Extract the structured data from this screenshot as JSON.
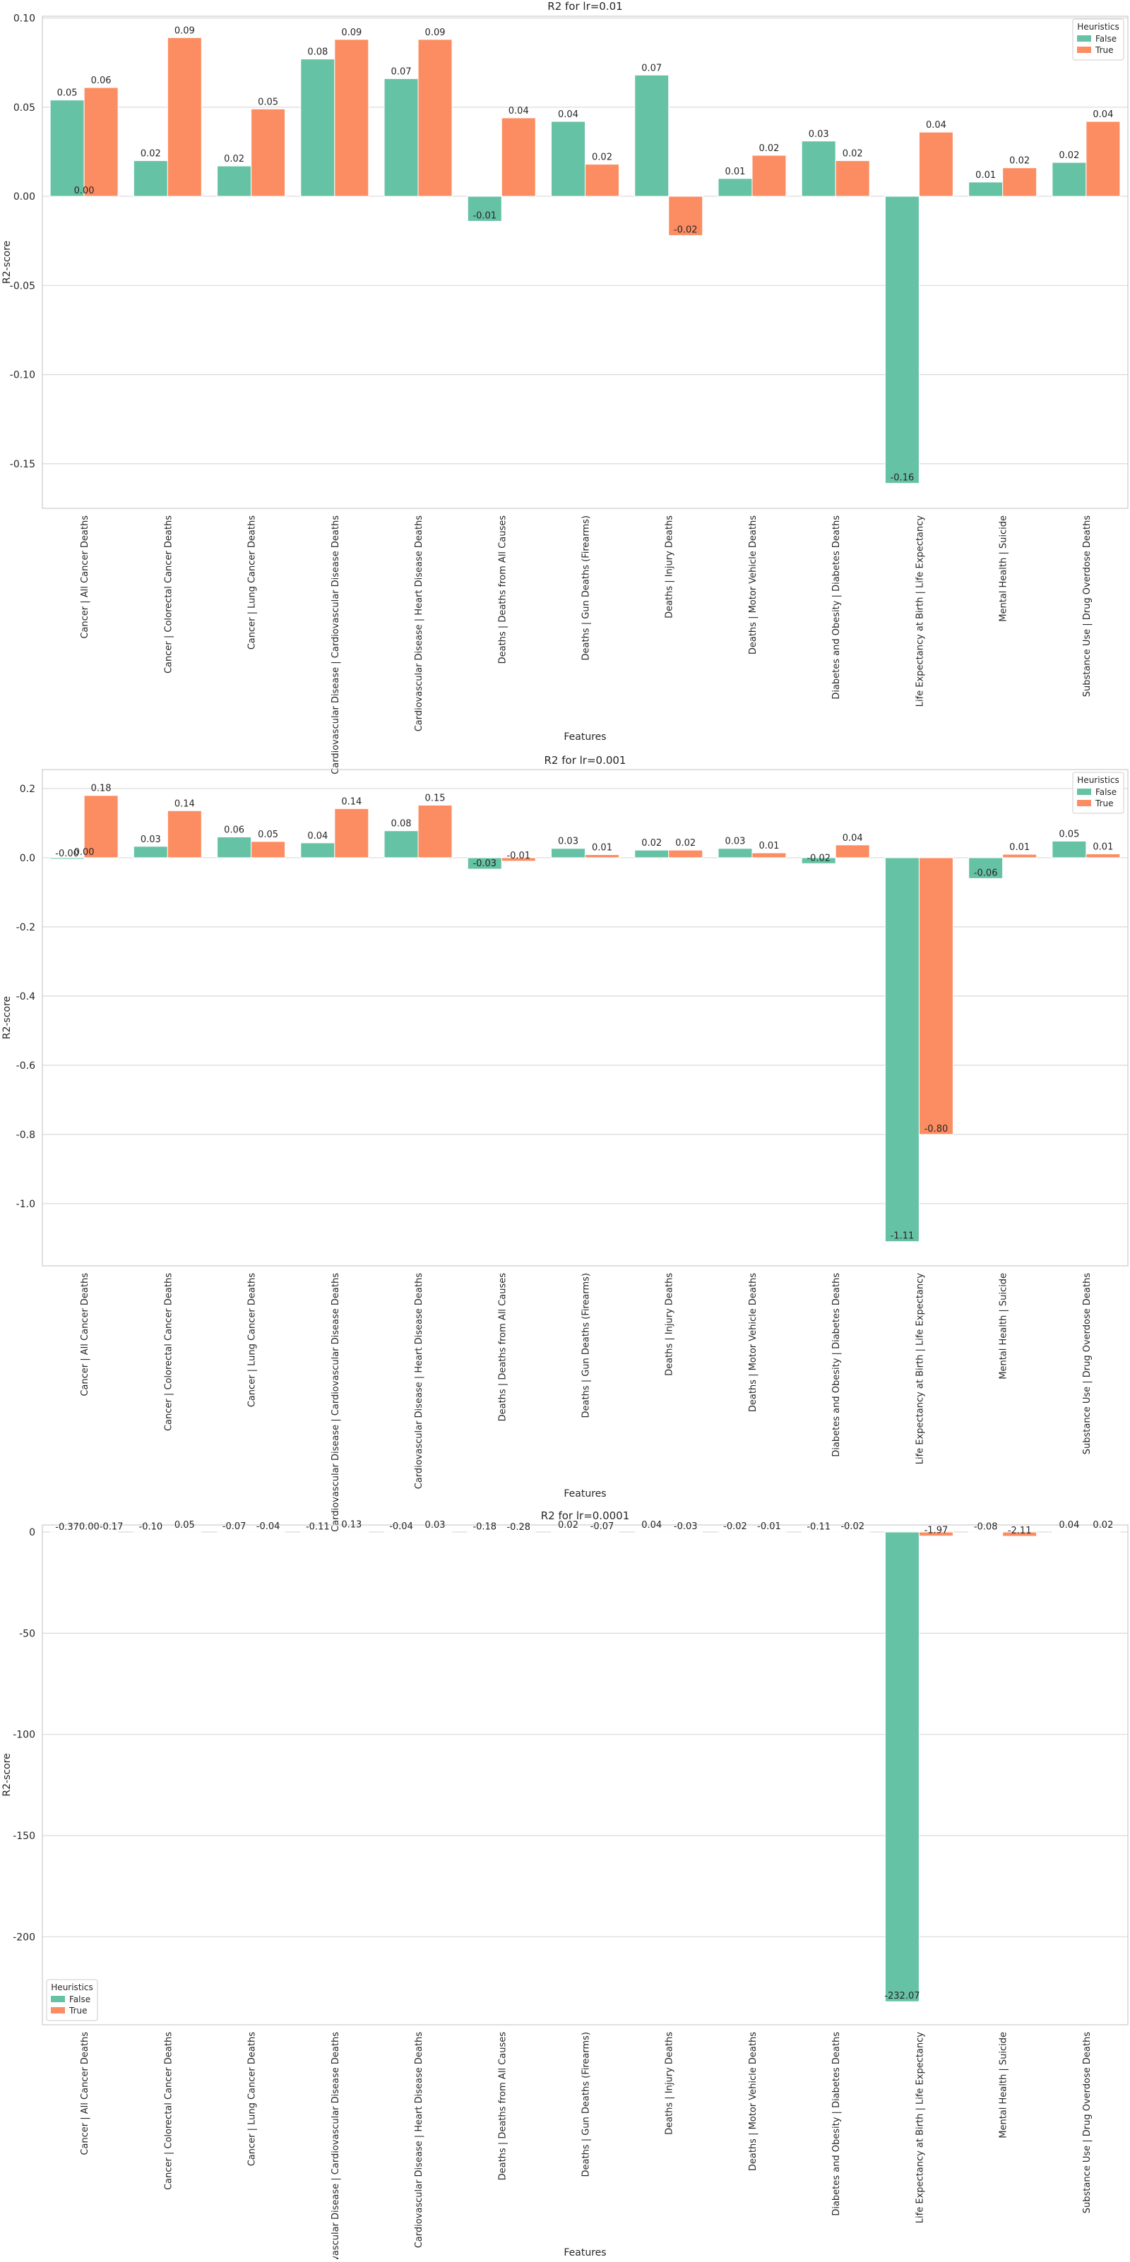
{
  "chart_data": [
    {
      "type": "bar",
      "title": "R2 for lr=0.01",
      "xlabel": "Features",
      "ylabel": "R2-score",
      "ylim": [
        -0.175,
        0.101
      ],
      "yticks": [
        0.1,
        0.05,
        0.0,
        -0.05,
        -0.1,
        -0.15
      ],
      "ytick_labels": [
        "0.10",
        "0.05",
        "0.00",
        "-0.05",
        "-0.10",
        "-0.15"
      ],
      "grid": true,
      "legend": {
        "title": "Heuristics",
        "placement": "top-right"
      },
      "categories": [
        "Cancer | All Cancer Deaths",
        "Cancer | Colorectal Cancer Deaths",
        "Cancer | Lung Cancer Deaths",
        "Cardiovascular Disease | Cardiovascular Disease Deaths",
        "Cardiovascular Disease | Heart Disease Deaths",
        "Deaths | Deaths from All Causes",
        "Deaths | Gun Deaths (Firearms)",
        "Deaths | Injury Deaths",
        "Deaths | Motor Vehicle Deaths",
        "Diabetes and Obesity | Diabetes Deaths",
        "Life Expectancy at Birth | Life Expectancy",
        "Mental Health | Suicide",
        "Substance Use | Drug Overdose Deaths"
      ],
      "series": [
        {
          "name": "False",
          "color": "#66c2a5",
          "values": [
            0.054,
            0.02,
            0.017,
            0.077,
            0.066,
            -0.014,
            0.042,
            0.068,
            0.01,
            0.031,
            -0.161,
            0.008,
            0.019
          ],
          "labels": [
            "0.05",
            "0.02",
            "0.02",
            "0.08",
            "0.07",
            "-0.01",
            "0.04",
            "0.07",
            "0.01",
            "0.03",
            "-0.16",
            "0.01",
            "0.02"
          ]
        },
        {
          "name": "True",
          "color": "#fc8d62",
          "values": [
            0.061,
            0.089,
            0.049,
            0.088,
            0.088,
            0.044,
            0.018,
            -0.022,
            0.023,
            0.02,
            0.036,
            0.016,
            0.042
          ],
          "labels": [
            "0.06",
            "0.09",
            "0.05",
            "0.09",
            "0.09",
            "0.04",
            "0.02",
            "-0.02",
            "0.02",
            "0.02",
            "0.04",
            "0.02",
            "0.04"
          ]
        }
      ],
      "extra_labels": [
        {
          "category": 0,
          "text": "0.00"
        }
      ]
    },
    {
      "type": "bar",
      "title": "R2 for lr=0.001",
      "xlabel": "Features",
      "ylabel": "R2-score",
      "ylim": [
        -1.18,
        0.255
      ],
      "yticks": [
        0.2,
        0.0,
        -0.2,
        -0.4,
        -0.6,
        -0.8,
        -1.0
      ],
      "ytick_labels": [
        "0.2",
        "0.0",
        "-0.2",
        "-0.4",
        "-0.6",
        "-0.8",
        "-1.0"
      ],
      "grid": true,
      "legend": {
        "title": "Heuristics",
        "placement": "top-right"
      },
      "categories": [
        "Cancer | All Cancer Deaths",
        "Cancer | Colorectal Cancer Deaths",
        "Cancer | Lung Cancer Deaths",
        "Cardiovascular Disease | Cardiovascular Disease Deaths",
        "Cardiovascular Disease | Heart Disease Deaths",
        "Deaths | Deaths from All Causes",
        "Deaths | Gun Deaths (Firearms)",
        "Deaths | Injury Deaths",
        "Deaths | Motor Vehicle Deaths",
        "Diabetes and Obesity | Diabetes Deaths",
        "Life Expectancy at Birth | Life Expectancy",
        "Mental Health | Suicide",
        "Substance Use | Drug Overdose Deaths"
      ],
      "series": [
        {
          "name": "False",
          "color": "#66c2a5",
          "values": [
            -0.004,
            0.033,
            0.06,
            0.043,
            0.078,
            -0.033,
            0.027,
            0.022,
            0.027,
            -0.017,
            -1.11,
            -0.06,
            0.048
          ],
          "labels": [
            "-0.00",
            "0.03",
            "0.06",
            "0.04",
            "0.08",
            "-0.03",
            "0.03",
            "0.02",
            "0.03",
            "-0.02",
            "-1.11",
            "-0.06",
            "0.05"
          ]
        },
        {
          "name": "True",
          "color": "#fc8d62",
          "values": [
            0.18,
            0.136,
            0.047,
            0.142,
            0.152,
            -0.01,
            0.009,
            0.022,
            0.014,
            0.037,
            -0.8,
            0.01,
            0.011
          ],
          "labels": [
            "0.18",
            "0.14",
            "0.05",
            "0.14",
            "0.15",
            "-0.01",
            "0.01",
            "0.02",
            "0.01",
            "0.04",
            "-0.80",
            "0.01",
            "0.01"
          ]
        }
      ],
      "extra_labels": [
        {
          "category": 0,
          "text": "0.00"
        }
      ]
    },
    {
      "type": "bar",
      "title": "R2 for lr=0.0001",
      "xlabel": "Features",
      "ylabel": "R2-score",
      "ylim": [
        -243.5,
        3.5
      ],
      "yticks": [
        0,
        -50,
        -100,
        -150,
        -200
      ],
      "ytick_labels": [
        "0",
        "-50",
        "-100",
        "-150",
        "-200"
      ],
      "grid": true,
      "legend": {
        "title": "Heuristics",
        "placement": "bottom-left"
      },
      "categories": [
        "Cancer | All Cancer Deaths",
        "Cancer | Colorectal Cancer Deaths",
        "Cancer | Lung Cancer Deaths",
        "Cardiovascular Disease | Cardiovascular Disease Deaths",
        "Cardiovascular Disease | Heart Disease Deaths",
        "Deaths | Deaths from All Causes",
        "Deaths | Gun Deaths (Firearms)",
        "Deaths | Injury Deaths",
        "Deaths | Motor Vehicle Deaths",
        "Diabetes and Obesity | Diabetes Deaths",
        "Life Expectancy at Birth | Life Expectancy",
        "Mental Health | Suicide",
        "Substance Use | Drug Overdose Deaths"
      ],
      "series": [
        {
          "name": "False",
          "color": "#66c2a5",
          "values": [
            -0.37,
            -0.1,
            -0.07,
            -0.11,
            -0.04,
            -0.18,
            0.02,
            0.04,
            -0.02,
            -0.11,
            -232.07,
            -0.08,
            0.04
          ],
          "labels": [
            "-0.37",
            "-0.10",
            "-0.07",
            "-0.11",
            "-0.04",
            "-0.18",
            "0.02",
            "0.04",
            "-0.02",
            "-0.11",
            "-232.07",
            "-0.08",
            "0.04"
          ]
        },
        {
          "name": "True",
          "color": "#fc8d62",
          "values": [
            -0.17,
            0.05,
            -0.04,
            0.13,
            0.03,
            -0.28,
            -0.07,
            -0.03,
            -0.01,
            -0.02,
            -1.97,
            -2.11,
            0.02
          ],
          "labels": [
            "0.00-0.17",
            "0.05",
            "-0.04",
            "0.13",
            "0.03",
            "-0.28",
            "-0.07",
            "-0.03",
            "-0.01",
            "-0.02",
            "-1.97",
            "-2.11",
            "0.02"
          ]
        }
      ],
      "extra_labels": []
    }
  ]
}
